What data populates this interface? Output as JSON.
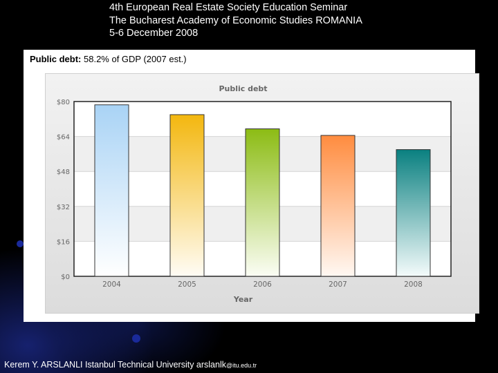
{
  "header": {
    "line1": "4th European Real Estate Society Education Seminar",
    "line2": "The Bucharest Academy of Economic Studies ROMANIA",
    "line3": "5-6 December 2008"
  },
  "panel": {
    "label_bold": "Public debt:",
    "label_rest": " 58.2% of GDP (2007 est.)"
  },
  "chart_data": {
    "type": "bar",
    "title": "Public debt",
    "xlabel": "Year",
    "ylabel": "",
    "categories": [
      "2004",
      "2005",
      "2006",
      "2007",
      "2008"
    ],
    "values": [
      78.5,
      74,
      67.5,
      64.5,
      58
    ],
    "ylim": [
      0,
      80
    ],
    "yticks": [
      "$0",
      "$16",
      "$32",
      "$48",
      "$64",
      "$80"
    ],
    "bar_colors": [
      {
        "top": "#a9d3f5",
        "bottom": "#ffffff"
      },
      {
        "top": "#f3b70f",
        "bottom": "#fffcf5"
      },
      {
        "top": "#8cbc14",
        "bottom": "#fbfdf5"
      },
      {
        "top": "#ff8c3f",
        "bottom": "#fff8f3"
      },
      {
        "top": "#0a8080",
        "bottom": "#f4fbfb"
      }
    ],
    "grid": true,
    "legend": "none"
  },
  "footer": {
    "text": "Kerem Y. ARSLANLI Istanbul Technical University arslanlk",
    "small": "@itu.edu.tr"
  }
}
